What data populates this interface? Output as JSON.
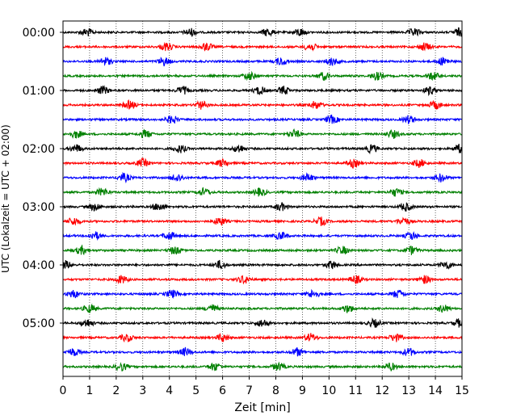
{
  "chart_data": {
    "type": "line",
    "title": "",
    "xlabel": "Zeit  [min]",
    "ylabel": "UTC (Lokalzeit = UTC + 02:00)",
    "xlim": [
      0,
      15
    ],
    "x_ticks": [
      "0",
      "1",
      "2",
      "3",
      "4",
      "5",
      "6",
      "7",
      "8",
      "9",
      "10",
      "11",
      "12",
      "13",
      "14",
      "15"
    ],
    "y_tick_labels": [
      "00:00",
      "01:00",
      "02:00",
      "03:00",
      "04:00",
      "05:00"
    ],
    "trace_interval_min": 15,
    "trace_count": 24,
    "trace_colors": [
      "#000000",
      "#ff0000",
      "#0000ff",
      "#008000"
    ],
    "grid": "vertical dotted at each minute",
    "legend": "none",
    "series": [
      {
        "start": "00:00",
        "color": "#000000",
        "events": [
          0.9,
          4.8,
          7.7,
          8.9,
          13.2,
          14.9
        ]
      },
      {
        "start": "00:15",
        "color": "#ff0000",
        "events": [
          3.9,
          5.4,
          9.3,
          13.6
        ]
      },
      {
        "start": "00:30",
        "color": "#0000ff",
        "events": [
          1.6,
          3.8,
          8.2,
          10.1,
          14.3
        ]
      },
      {
        "start": "00:45",
        "color": "#008000",
        "events": [
          7.0,
          9.8,
          11.8,
          13.9
        ]
      },
      {
        "start": "01:00",
        "color": "#000000",
        "events": [
          1.5,
          4.5,
          7.4,
          8.3,
          13.8
        ]
      },
      {
        "start": "01:15",
        "color": "#ff0000",
        "events": [
          2.5,
          5.2,
          9.5,
          14.0
        ]
      },
      {
        "start": "01:30",
        "color": "#0000ff",
        "events": [
          4.1,
          10.1,
          13.0
        ]
      },
      {
        "start": "01:45",
        "color": "#008000",
        "events": [
          0.5,
          3.1,
          8.7,
          12.4
        ]
      },
      {
        "start": "02:00",
        "color": "#000000",
        "events": [
          0.5,
          4.4,
          6.6,
          11.6,
          14.9
        ]
      },
      {
        "start": "02:15",
        "color": "#ff0000",
        "events": [
          3.0,
          6.0,
          10.9,
          13.4
        ]
      },
      {
        "start": "02:30",
        "color": "#0000ff",
        "events": [
          2.3,
          4.3,
          9.2,
          14.2
        ]
      },
      {
        "start": "02:45",
        "color": "#008000",
        "events": [
          1.5,
          5.3,
          7.4,
          12.5
        ]
      },
      {
        "start": "03:00",
        "color": "#000000",
        "events": [
          1.2,
          3.6,
          8.2,
          12.9
        ]
      },
      {
        "start": "03:15",
        "color": "#ff0000",
        "events": [
          0.4,
          5.9,
          9.7,
          12.8
        ]
      },
      {
        "start": "03:30",
        "color": "#0000ff",
        "events": [
          1.2,
          4.0,
          8.2,
          13.1
        ]
      },
      {
        "start": "03:45",
        "color": "#008000",
        "events": [
          0.7,
          4.2,
          10.5,
          13.1
        ]
      },
      {
        "start": "04:00",
        "color": "#000000",
        "events": [
          0.1,
          5.9,
          10.1,
          14.4
        ]
      },
      {
        "start": "04:15",
        "color": "#ff0000",
        "events": [
          2.2,
          6.8,
          11.0,
          13.6
        ]
      },
      {
        "start": "04:30",
        "color": "#0000ff",
        "events": [
          0.4,
          4.1,
          9.4,
          12.6
        ]
      },
      {
        "start": "04:45",
        "color": "#008000",
        "events": [
          1.0,
          5.6,
          10.7,
          14.3
        ]
      },
      {
        "start": "05:00",
        "color": "#000000",
        "events": [
          0.9,
          7.5,
          11.7,
          14.9
        ]
      },
      {
        "start": "05:15",
        "color": "#ff0000",
        "events": [
          2.4,
          6.0,
          9.3,
          12.5
        ]
      },
      {
        "start": "05:30",
        "color": "#0000ff",
        "events": [
          0.4,
          4.6,
          8.8,
          13.0
        ]
      },
      {
        "start": "05:45",
        "color": "#008000",
        "events": [
          2.2,
          5.7,
          8.1,
          12.3
        ]
      }
    ]
  }
}
